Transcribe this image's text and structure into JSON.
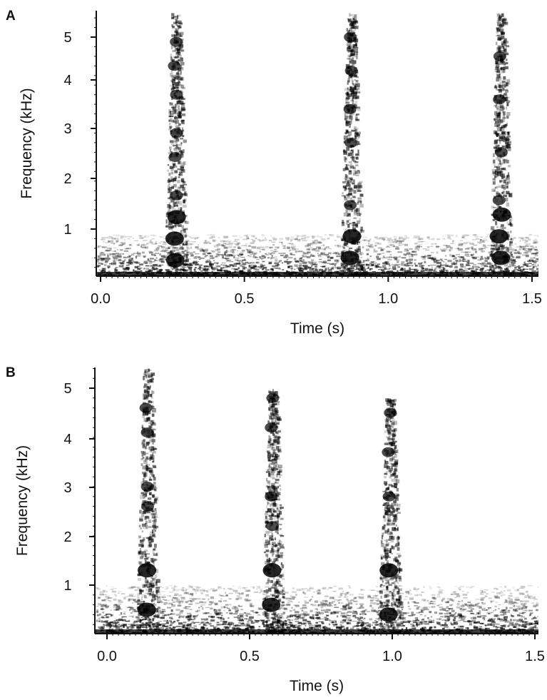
{
  "chart_data": [
    {
      "type": "heatmap",
      "panel_label": "A",
      "xlabel": "Time (s)",
      "ylabel": "Frequency (kHz)",
      "x_ticks": [
        "0.0",
        "0.5",
        "1.0",
        "1.5"
      ],
      "y_ticks": [
        "1",
        "2",
        "3",
        "4",
        "5"
      ],
      "xlim": [
        -0.02,
        1.52
      ],
      "ylim": [
        0,
        5.5
      ],
      "colormap": "grayscale (white = low, black = high energy)",
      "grid": false,
      "noise_floor_khz": 0.9,
      "calls": [
        {
          "time_s": 0.26,
          "max_freq_khz": 5.5,
          "dark_bands_khz": [
            0.35,
            0.8,
            1.25,
            1.7,
            2.5,
            3.0,
            3.8,
            4.4,
            4.9
          ]
        },
        {
          "time_s": 0.87,
          "max_freq_khz": 5.5,
          "dark_bands_khz": [
            0.4,
            0.85,
            1.5,
            2.8,
            3.5,
            4.3,
            5.0
          ]
        },
        {
          "time_s": 1.39,
          "max_freq_khz": 5.5,
          "dark_bands_khz": [
            0.4,
            0.85,
            1.3,
            1.6,
            2.6,
            3.7,
            4.6
          ]
        }
      ]
    },
    {
      "type": "heatmap",
      "panel_label": "B",
      "xlabel": "Time (s)",
      "ylabel": "Frequency (kHz)",
      "x_ticks": [
        "0.0",
        "0.5",
        "1.0",
        "1.5"
      ],
      "y_ticks": [
        "1",
        "2",
        "3",
        "4",
        "5"
      ],
      "xlim": [
        -0.02,
        1.52
      ],
      "ylim": [
        0,
        5.5
      ],
      "colormap": "grayscale (white = low, black = high energy)",
      "grid": false,
      "noise_floor_khz": 1.0,
      "calls": [
        {
          "time_s": 0.14,
          "max_freq_khz": 5.4,
          "dark_bands_khz": [
            0.5,
            1.3,
            2.6,
            3.0,
            4.1,
            4.6
          ]
        },
        {
          "time_s": 0.58,
          "max_freq_khz": 5.0,
          "dark_bands_khz": [
            0.6,
            1.3,
            2.2,
            2.8,
            4.2,
            4.8
          ]
        },
        {
          "time_s": 0.99,
          "max_freq_khz": 4.8,
          "dark_bands_khz": [
            0.4,
            1.3,
            2.8,
            3.7,
            4.5
          ]
        }
      ]
    }
  ]
}
